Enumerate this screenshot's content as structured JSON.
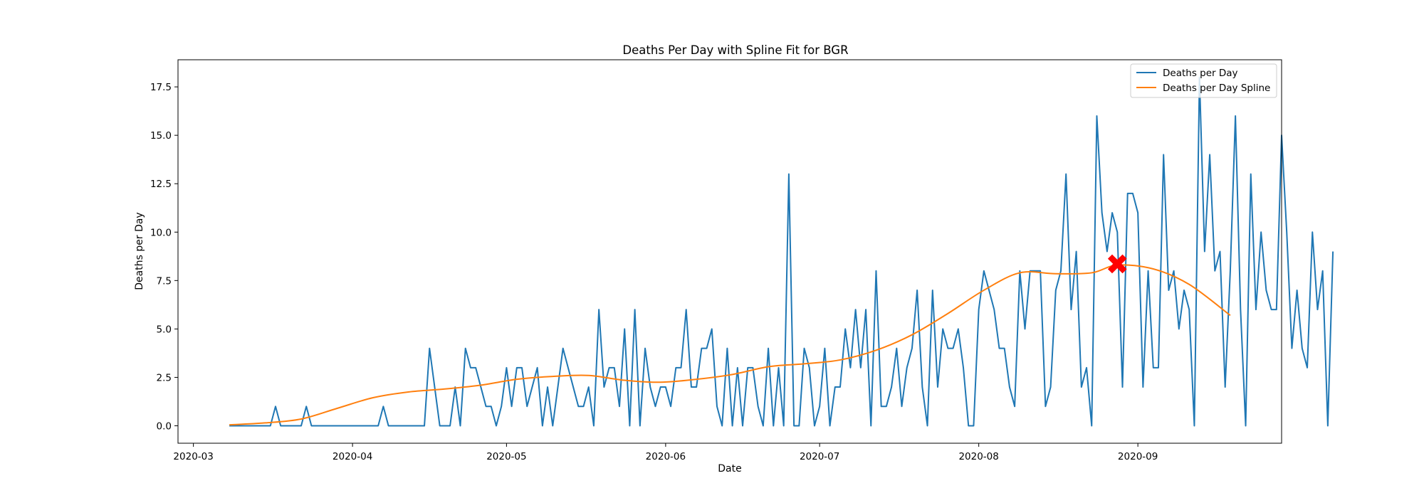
{
  "chart_data": {
    "type": "line",
    "title": "Deaths Per Day with Spline Fit for BGR",
    "xlabel": "Date",
    "ylabel": "Deaths per Day",
    "xlim": [
      "2020-02-27",
      "2020-09-29"
    ],
    "ylim": [
      -0.9,
      18.9
    ],
    "x_ticks": [
      "2020-03",
      "2020-04",
      "2020-05",
      "2020-06",
      "2020-07",
      "2020-08",
      "2020-09"
    ],
    "y_ticks": [
      "0.0",
      "2.5",
      "5.0",
      "7.5",
      "10.0",
      "12.5",
      "15.0",
      "17.5"
    ],
    "grid": false,
    "legend_position": "top-right",
    "colors": {
      "daily": "#1f77b4",
      "spline": "#ff7f0e",
      "marker": "#ff0000"
    },
    "series": [
      {
        "name": "Deaths per Day",
        "x_start": "2020-03-08",
        "values": [
          0,
          0,
          0,
          0,
          0,
          0,
          0,
          0,
          0,
          1,
          0,
          0,
          0,
          0,
          0,
          1,
          0,
          0,
          0,
          0,
          0,
          0,
          0,
          0,
          0,
          0,
          0,
          0,
          0,
          0,
          1,
          0,
          0,
          0,
          0,
          0,
          0,
          0,
          0,
          4,
          2,
          0,
          0,
          0,
          2,
          0,
          4,
          3,
          3,
          2,
          1,
          1,
          0,
          1,
          3,
          1,
          3,
          3,
          1,
          2,
          3,
          0,
          2,
          0,
          2,
          4,
          3,
          2,
          1,
          1,
          2,
          0,
          6,
          2,
          3,
          3,
          1,
          5,
          0,
          6,
          0,
          4,
          2,
          1,
          2,
          2,
          1,
          3,
          3,
          6,
          2,
          2,
          4,
          4,
          5,
          1,
          0,
          4,
          0,
          3,
          0,
          3,
          3,
          1,
          0,
          4,
          0,
          3,
          0,
          13,
          0,
          0,
          4,
          3,
          0,
          1,
          4,
          0,
          2,
          2,
          5,
          3,
          6,
          3,
          6,
          0,
          8,
          1,
          1,
          2,
          4,
          1,
          3,
          4,
          7,
          2,
          0,
          7,
          2,
          5,
          4,
          4,
          5,
          3,
          0,
          0,
          6,
          8,
          7,
          6,
          4,
          4,
          2,
          1,
          8,
          5,
          8,
          8,
          8,
          1,
          2,
          7,
          8,
          13,
          6,
          9,
          2,
          3,
          0,
          16,
          11,
          9,
          11,
          10,
          2,
          12,
          12,
          11,
          2,
          8,
          3,
          3,
          14,
          7,
          8,
          5,
          7,
          6,
          0,
          18,
          9,
          14,
          8,
          9,
          2,
          8,
          16,
          6,
          0,
          13,
          6,
          10,
          7,
          6,
          6,
          15,
          10,
          4,
          7,
          4,
          3,
          10,
          6,
          8,
          0,
          9
        ]
      },
      {
        "name": "Deaths per Day Spline",
        "x": [
          "2020-03-08",
          "2020-03-15",
          "2020-03-22",
          "2020-03-29",
          "2020-04-05",
          "2020-04-12",
          "2020-04-19",
          "2020-04-26",
          "2020-05-03",
          "2020-05-10",
          "2020-05-17",
          "2020-05-24",
          "2020-05-31",
          "2020-06-07",
          "2020-06-14",
          "2020-06-21",
          "2020-06-28",
          "2020-07-05",
          "2020-07-12",
          "2020-07-19",
          "2020-07-26",
          "2020-08-02",
          "2020-08-09",
          "2020-08-16",
          "2020-08-23",
          "2020-08-28",
          "2020-09-04",
          "2020-09-11",
          "2020-09-19"
        ],
        "values": [
          0.05,
          0.15,
          0.35,
          0.9,
          1.45,
          1.75,
          1.9,
          2.1,
          2.4,
          2.55,
          2.6,
          2.35,
          2.25,
          2.4,
          2.65,
          3.05,
          3.2,
          3.4,
          3.9,
          4.7,
          5.8,
          7.0,
          7.9,
          7.85,
          7.9,
          8.3,
          8.1,
          7.3,
          5.7
        ]
      }
    ],
    "annotation": {
      "x": "2020-08-28",
      "y": 8.3,
      "marker": "X"
    }
  }
}
